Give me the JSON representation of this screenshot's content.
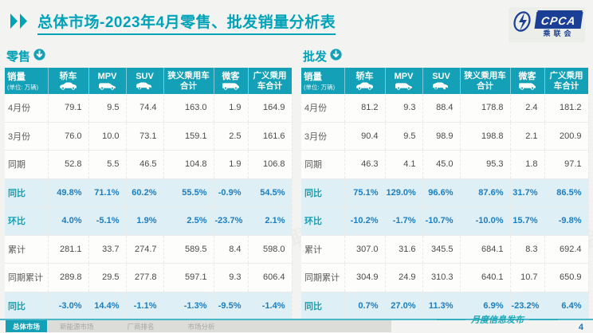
{
  "page": {
    "title": "总体市场-2023年4月零售、批发销量分析表",
    "footer_note": "月度信息发布",
    "page_number": "4",
    "watermark": "CPCA 乘联会"
  },
  "logo": {
    "text": "CPCA",
    "subtext": "乘联会",
    "brand_color": "#1a3f94"
  },
  "colors": {
    "accent_teal": "#00a2b8",
    "header_teal": "#14a0b6",
    "highlight_row_bg": "#def0f6",
    "highlight_value_blue": "#1c7dc0",
    "page_number_blue": "#2f6eb5"
  },
  "table_columns": {
    "sales_label": "销量",
    "sales_unit": "(单位: 万辆)",
    "cols": [
      {
        "label": "轿车",
        "icon": "sedan-icon"
      },
      {
        "label": "MPV",
        "icon": "mpv-icon"
      },
      {
        "label": "SUV",
        "icon": "suv-icon"
      },
      {
        "label": "狭义乘用车合计",
        "icon": ""
      },
      {
        "label": "微客",
        "icon": "van-icon"
      },
      {
        "label": "广义乘用车合计",
        "icon": ""
      }
    ]
  },
  "retail": {
    "section_label": "零售",
    "rows": [
      {
        "label": "4月份",
        "values": [
          "79.1",
          "9.5",
          "74.4",
          "163.0",
          "1.9",
          "164.9"
        ],
        "highlight": false
      },
      {
        "label": "3月份",
        "values": [
          "76.0",
          "10.0",
          "73.1",
          "159.1",
          "2.5",
          "161.6"
        ],
        "highlight": false
      },
      {
        "label": "同期",
        "values": [
          "52.8",
          "5.5",
          "46.5",
          "104.8",
          "1.9",
          "106.8"
        ],
        "highlight": false
      },
      {
        "label": "同比",
        "values": [
          "49.8%",
          "71.1%",
          "60.2%",
          "55.5%",
          "-0.9%",
          "54.5%"
        ],
        "highlight": true
      },
      {
        "label": "环比",
        "values": [
          "4.0%",
          "-5.1%",
          "1.9%",
          "2.5%",
          "-23.7%",
          "2.1%"
        ],
        "highlight": true
      },
      {
        "label": "累计",
        "values": [
          "281.1",
          "33.7",
          "274.7",
          "589.5",
          "8.4",
          "598.0"
        ],
        "highlight": false
      },
      {
        "label": "同期累计",
        "values": [
          "289.8",
          "29.5",
          "277.8",
          "597.1",
          "9.3",
          "606.4"
        ],
        "highlight": false
      },
      {
        "label": "同比",
        "values": [
          "-3.0%",
          "14.4%",
          "-1.1%",
          "-1.3%",
          "-9.5%",
          "-1.4%"
        ],
        "highlight": true
      }
    ]
  },
  "wholesale": {
    "section_label": "批发",
    "rows": [
      {
        "label": "4月份",
        "values": [
          "81.2",
          "9.3",
          "88.4",
          "178.8",
          "2.4",
          "181.2"
        ],
        "highlight": false
      },
      {
        "label": "3月份",
        "values": [
          "90.4",
          "9.5",
          "98.9",
          "198.8",
          "2.1",
          "200.9"
        ],
        "highlight": false
      },
      {
        "label": "同期",
        "values": [
          "46.3",
          "4.1",
          "45.0",
          "95.3",
          "1.8",
          "97.1"
        ],
        "highlight": false
      },
      {
        "label": "同比",
        "values": [
          "75.1%",
          "129.0%",
          "96.6%",
          "87.6%",
          "31.7%",
          "86.5%"
        ],
        "highlight": true
      },
      {
        "label": "环比",
        "values": [
          "-10.2%",
          "-1.7%",
          "-10.7%",
          "-10.0%",
          "15.7%",
          "-9.8%"
        ],
        "highlight": true
      },
      {
        "label": "累计",
        "values": [
          "307.0",
          "31.6",
          "345.5",
          "684.1",
          "8.3",
          "692.4"
        ],
        "highlight": false
      },
      {
        "label": "同期累计",
        "values": [
          "304.9",
          "24.9",
          "310.3",
          "640.1",
          "10.7",
          "650.9"
        ],
        "highlight": false
      },
      {
        "label": "同比",
        "values": [
          "0.7%",
          "27.0%",
          "11.3%",
          "6.9%",
          "-23.2%",
          "6.4%"
        ],
        "highlight": true
      }
    ]
  },
  "footer_tabs": [
    {
      "label": "总体市场",
      "active": true
    },
    {
      "label": "新能源市场",
      "active": false
    },
    {
      "label": "厂商排名",
      "active": false
    },
    {
      "label": "市场分析",
      "active": false
    }
  ]
}
